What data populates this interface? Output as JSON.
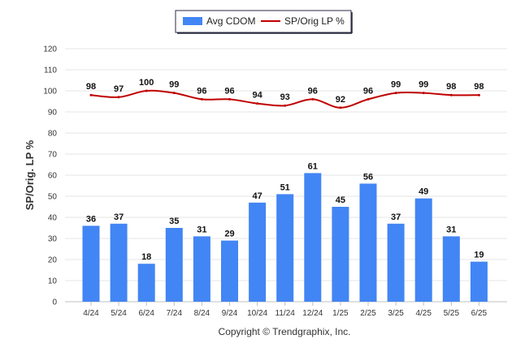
{
  "chart_data": {
    "type": "bar",
    "categories": [
      "4/24",
      "5/24",
      "6/24",
      "7/24",
      "8/24",
      "9/24",
      "10/24",
      "11/24",
      "12/24",
      "1/25",
      "2/25",
      "3/25",
      "4/25",
      "5/25",
      "6/25"
    ],
    "series": [
      {
        "name": "Avg CDOM",
        "type": "bar",
        "color": "#4285f4",
        "values": [
          36,
          37,
          18,
          35,
          31,
          29,
          47,
          51,
          61,
          45,
          56,
          37,
          49,
          31,
          19
        ]
      },
      {
        "name": "SP/Orig LP %",
        "type": "line",
        "color": "#c00000",
        "values": [
          98,
          97,
          100,
          99,
          96,
          96,
          94,
          93,
          96,
          92,
          96,
          99,
          99,
          98,
          98
        ]
      }
    ],
    "ylabel": "SP/Orig. LP %",
    "xlabel": "",
    "ylim": [
      0,
      120
    ],
    "yticks": [
      0,
      10,
      20,
      30,
      40,
      50,
      60,
      70,
      80,
      90,
      100,
      110,
      120
    ],
    "grid": true,
    "legend_position": "top-center"
  },
  "credit": "Copyright © Trendgraphix, Inc."
}
